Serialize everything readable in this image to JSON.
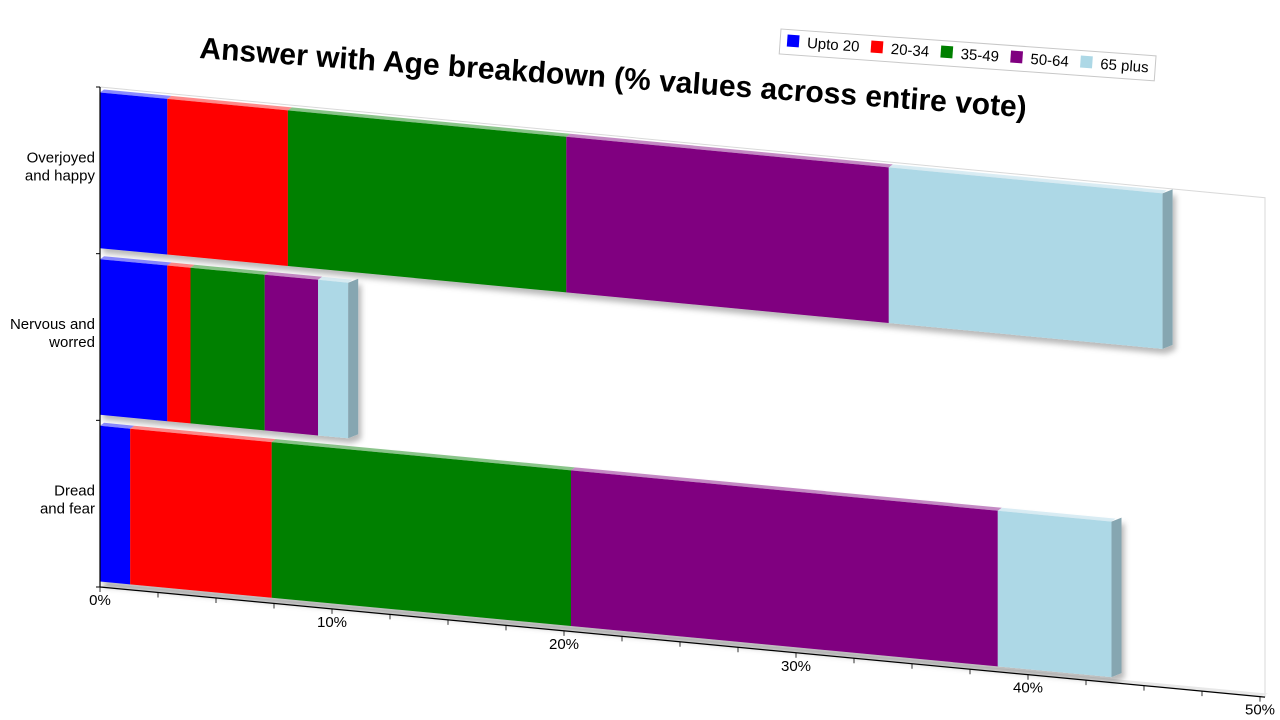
{
  "chart_data": {
    "type": "bar",
    "orientation": "horizontal",
    "stacked": true,
    "title": "Answer with Age breakdown (% values across entire vote)",
    "categories": [
      "Overjoyed and happy",
      "Nervous and worred",
      "Dread and fear"
    ],
    "category_lines": [
      [
        "Overjoyed",
        "and happy"
      ],
      [
        "Nervous and",
        "worred"
      ],
      [
        "Dread",
        "and fear"
      ]
    ],
    "series": [
      {
        "name": "Upto 20",
        "color": "#0000ff",
        "values": [
          2.9,
          2.9,
          1.3
        ]
      },
      {
        "name": "20-34",
        "color": "#ff0000",
        "values": [
          5.2,
          1.0,
          6.1
        ]
      },
      {
        "name": "35-49",
        "color": "#008000",
        "values": [
          12.0,
          3.2,
          12.9
        ]
      },
      {
        "name": "50-64",
        "color": "#800080",
        "values": [
          13.9,
          2.3,
          18.4
        ]
      },
      {
        "name": "65 plus",
        "color": "#add8e6",
        "values": [
          11.8,
          1.3,
          4.9
        ]
      }
    ],
    "x_ticks": [
      "0%",
      "10%",
      "20%",
      "30%",
      "40%",
      "50%"
    ],
    "xlim": [
      0,
      50
    ],
    "legend_position": "top-right",
    "grid": false
  }
}
